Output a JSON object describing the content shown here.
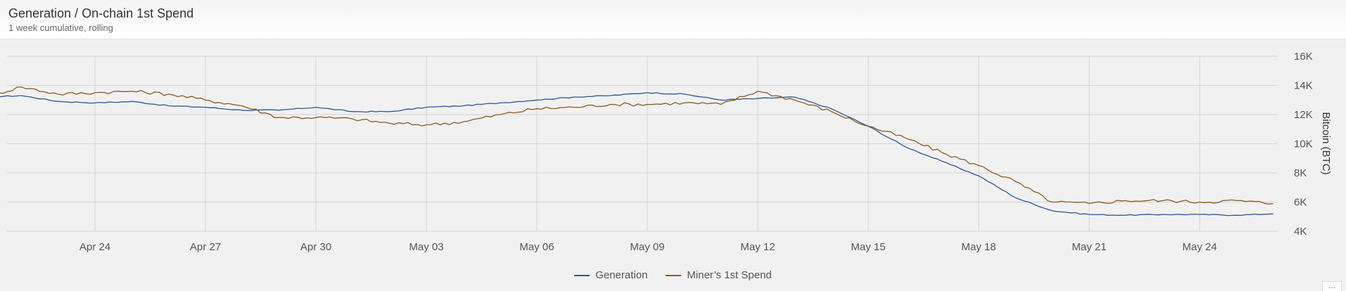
{
  "header": {
    "title": "Generation / On-chain 1st Spend",
    "subtitle": "1 week cumulative, rolling"
  },
  "more_button": {
    "label": "..."
  },
  "colors": {
    "generation": "#2f5597",
    "spend": "#8b5a1f",
    "grid": "#d4d4d4"
  },
  "chart_data": {
    "type": "line",
    "title": "Generation / On-chain 1st Spend",
    "subtitle": "1 week cumulative, rolling",
    "xlabel": "",
    "ylabel": "Bitcoin (BTC)",
    "ylim": [
      4000,
      16000
    ],
    "yticks": [
      4000,
      6000,
      8000,
      10000,
      12000,
      14000,
      16000
    ],
    "ytick_labels": [
      "4K",
      "6K",
      "8K",
      "10K",
      "12K",
      "14K",
      "16K"
    ],
    "x_start": "Apr 21.6",
    "xticks": [
      "Apr 24",
      "Apr 27",
      "Apr 30",
      "May 03",
      "May 06",
      "May 09",
      "May 12",
      "May 15",
      "May 18",
      "May 21",
      "May 24"
    ],
    "grid": true,
    "legend_position": "bottom",
    "series": [
      {
        "name": "Generation",
        "color": "#2f5597",
        "x": [
          "2024-04-21",
          "2024-04-22",
          "2024-04-23",
          "2024-04-24",
          "2024-04-25",
          "2024-04-26",
          "2024-04-27",
          "2024-04-28",
          "2024-04-29",
          "2024-04-30",
          "2024-05-01",
          "2024-05-02",
          "2024-05-03",
          "2024-05-04",
          "2024-05-05",
          "2024-05-06",
          "2024-05-07",
          "2024-05-08",
          "2024-05-09",
          "2024-05-10",
          "2024-05-11",
          "2024-05-12",
          "2024-05-13",
          "2024-05-14",
          "2024-05-15",
          "2024-05-16",
          "2024-05-17",
          "2024-05-18",
          "2024-05-19",
          "2024-05-20",
          "2024-05-21",
          "2024-05-22",
          "2024-05-23",
          "2024-05-24",
          "2024-05-25",
          "2024-05-26"
        ],
        "values": [
          13200,
          13300,
          12900,
          12800,
          12900,
          12600,
          12500,
          12300,
          12300,
          12500,
          12200,
          12200,
          12500,
          12600,
          12800,
          13000,
          13200,
          13300,
          13500,
          13400,
          13000,
          13100,
          13200,
          12400,
          11200,
          9800,
          8800,
          7800,
          6300,
          5400,
          5150,
          5100,
          5150,
          5150,
          5100,
          5200
        ]
      },
      {
        "name": "Miner’s 1st Spend",
        "color": "#8b5a1f",
        "x": [
          "2024-04-21",
          "2024-04-22",
          "2024-04-23",
          "2024-04-24",
          "2024-04-25",
          "2024-04-26",
          "2024-04-27",
          "2024-04-28",
          "2024-04-29",
          "2024-04-30",
          "2024-05-01",
          "2024-05-02",
          "2024-05-03",
          "2024-05-04",
          "2024-05-05",
          "2024-05-06",
          "2024-05-07",
          "2024-05-08",
          "2024-05-09",
          "2024-05-10",
          "2024-05-11",
          "2024-05-12",
          "2024-05-13",
          "2024-05-14",
          "2024-05-15",
          "2024-05-16",
          "2024-05-17",
          "2024-05-18",
          "2024-05-19",
          "2024-05-20",
          "2024-05-21",
          "2024-05-22",
          "2024-05-23",
          "2024-05-24",
          "2024-05-25",
          "2024-05-26"
        ],
        "values": [
          13200,
          13900,
          13400,
          13500,
          13600,
          13400,
          13000,
          12600,
          11800,
          11800,
          11700,
          11400,
          11300,
          11500,
          12000,
          12400,
          12500,
          12700,
          12700,
          12800,
          12700,
          13600,
          13000,
          12200,
          11200,
          10400,
          9400,
          8500,
          7400,
          6000,
          5900,
          6100,
          6100,
          6000,
          6100,
          5900
        ]
      }
    ]
  }
}
